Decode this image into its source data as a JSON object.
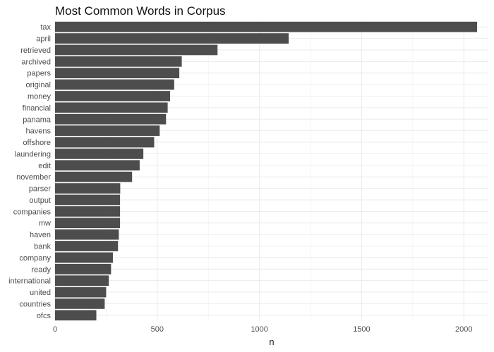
{
  "chart_data": {
    "type": "bar",
    "orientation": "horizontal",
    "title": "Most Common Words in Corpus",
    "xlabel": "n",
    "ylabel": "",
    "xlim": [
      0,
      2120
    ],
    "x_ticks": [
      0,
      500,
      1000,
      1500,
      2000
    ],
    "x_tick_labels": [
      "0",
      "500",
      "1000",
      "1500",
      "2000"
    ],
    "grid": true,
    "bar_color": "#4d4d4d",
    "categories": [
      "tax",
      "april",
      "retrieved",
      "archived",
      "papers",
      "original",
      "money",
      "financial",
      "panama",
      "havens",
      "offshore",
      "laundering",
      "edit",
      "november",
      "parser",
      "output",
      "companies",
      "mw",
      "haven",
      "bank",
      "company",
      "ready",
      "international",
      "united",
      "countries",
      "ofcs"
    ],
    "values": [
      2065,
      1143,
      795,
      620,
      608,
      583,
      563,
      551,
      543,
      512,
      485,
      432,
      414,
      377,
      319,
      318,
      318,
      318,
      312,
      308,
      283,
      274,
      263,
      250,
      243,
      202
    ]
  }
}
